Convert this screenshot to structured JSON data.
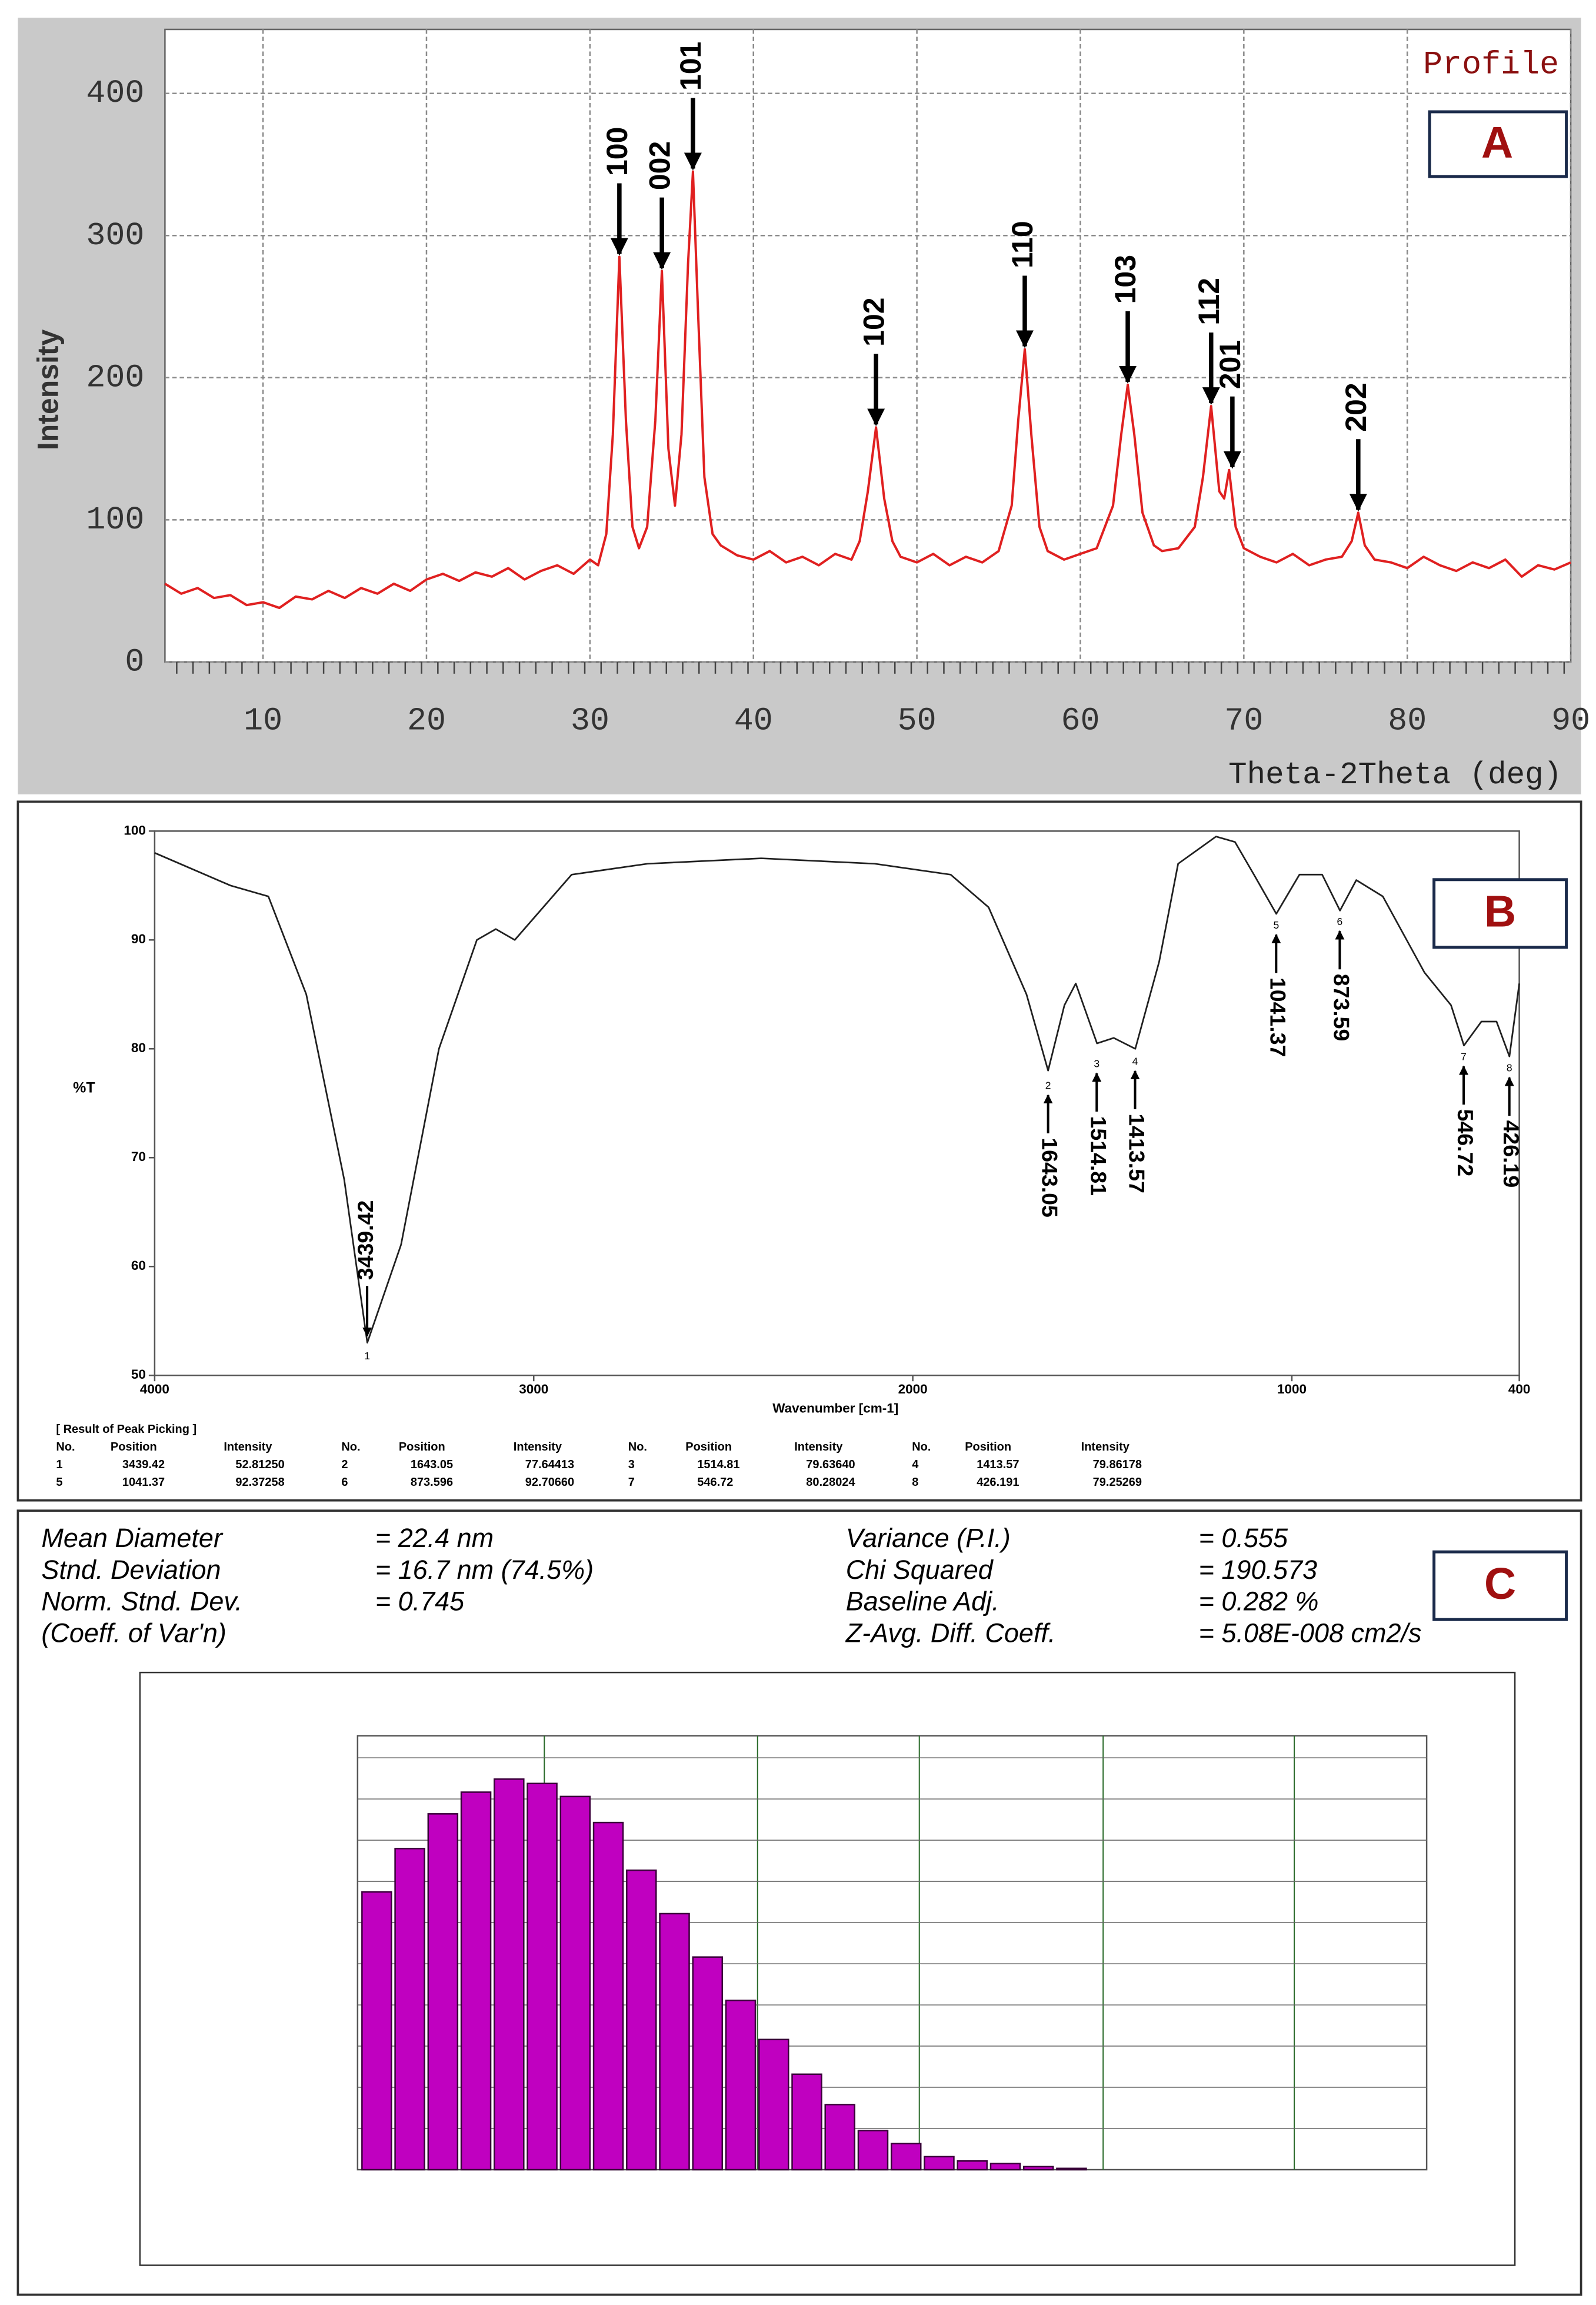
{
  "chart_data": [
    {
      "type": "line",
      "panel_label": "A",
      "corner_text": "Profile",
      "xlabel": "Theta-2Theta (deg)",
      "ylabel": "Intensity",
      "color": "#e02020",
      "grid": true,
      "xlim": [
        4,
        90
      ],
      "xticks": [
        10,
        20,
        30,
        40,
        50,
        60,
        70,
        80,
        90
      ],
      "ylim": [
        0,
        445
      ],
      "yticks": [
        0,
        100,
        200,
        300,
        400
      ],
      "x": [
        4,
        5,
        6,
        7,
        8,
        9,
        10,
        11,
        12,
        13,
        14,
        15,
        16,
        17,
        18,
        19,
        20,
        21,
        22,
        23,
        24,
        25,
        26,
        27,
        28,
        29,
        30,
        30.5,
        31,
        31.4,
        31.8,
        32.2,
        32.6,
        33,
        33.5,
        34,
        34.4,
        34.8,
        35.2,
        35.6,
        36,
        36.3,
        36.6,
        37,
        37.5,
        38,
        39,
        40,
        41,
        42,
        43,
        44,
        45,
        46,
        46.5,
        47,
        47.5,
        48,
        48.5,
        49,
        50,
        51,
        52,
        53,
        54,
        55,
        55.8,
        56.2,
        56.6,
        57,
        57.5,
        58,
        59,
        60,
        61,
        62,
        62.5,
        62.9,
        63.3,
        63.8,
        64.5,
        65,
        66,
        67,
        67.5,
        68,
        68.5,
        68.8,
        69.1,
        69.5,
        70,
        71,
        72,
        73,
        74,
        75,
        76,
        76.6,
        77,
        77.4,
        78,
        79,
        80,
        81,
        82,
        83,
        84,
        85,
        86,
        87,
        88,
        89,
        90
      ],
      "values": [
        55,
        48,
        52,
        45,
        47,
        40,
        42,
        38,
        46,
        44,
        50,
        45,
        52,
        48,
        55,
        50,
        58,
        62,
        57,
        63,
        60,
        66,
        58,
        64,
        68,
        62,
        72,
        68,
        90,
        160,
        285,
        170,
        95,
        80,
        95,
        170,
        275,
        150,
        110,
        160,
        280,
        345,
        250,
        130,
        90,
        82,
        75,
        72,
        78,
        70,
        74,
        68,
        76,
        72,
        85,
        120,
        165,
        115,
        85,
        74,
        70,
        76,
        68,
        74,
        70,
        78,
        110,
        170,
        220,
        160,
        95,
        78,
        72,
        76,
        80,
        110,
        160,
        195,
        160,
        105,
        82,
        78,
        80,
        95,
        130,
        180,
        120,
        115,
        135,
        95,
        80,
        74,
        70,
        76,
        68,
        72,
        74,
        85,
        105,
        82,
        72,
        70,
        66,
        74,
        68,
        64,
        70,
        66,
        72,
        60,
        68,
        65,
        70
      ],
      "annotations": [
        {
          "label": "100",
          "x": 31.8,
          "y": 285
        },
        {
          "label": "002",
          "x": 34.4,
          "y": 275
        },
        {
          "label": "101",
          "x": 36.3,
          "y": 345
        },
        {
          "label": "102",
          "x": 47.5,
          "y": 165
        },
        {
          "label": "110",
          "x": 56.6,
          "y": 220
        },
        {
          "label": "103",
          "x": 62.9,
          "y": 195
        },
        {
          "label": "112",
          "x": 68,
          "y": 180
        },
        {
          "label": "201",
          "x": 69.3,
          "y": 135
        },
        {
          "label": "202",
          "x": 77,
          "y": 105
        }
      ]
    },
    {
      "type": "line",
      "panel_label": "B",
      "xlabel": "Wavenumber [cm-1]",
      "ylabel": "%T",
      "color": "#202020",
      "grid": false,
      "xlim": [
        4000,
        400
      ],
      "xticks": [
        4000,
        3000,
        2000,
        1000,
        400
      ],
      "ylim": [
        50,
        100
      ],
      "yticks": [
        50,
        60,
        70,
        80,
        90,
        100
      ],
      "x": [
        4000,
        3800,
        3700,
        3600,
        3500,
        3439,
        3350,
        3250,
        3150,
        3100,
        3050,
        3000,
        2900,
        2700,
        2400,
        2100,
        1900,
        1800,
        1700,
        1643,
        1600,
        1570,
        1514,
        1470,
        1413,
        1350,
        1300,
        1200,
        1150,
        1100,
        1041,
        980,
        920,
        873,
        830,
        760,
        650,
        580,
        546,
        500,
        460,
        426,
        400
      ],
      "values": [
        98,
        95,
        94,
        85,
        68,
        53,
        62,
        80,
        90,
        91,
        90,
        92,
        96,
        97,
        97.5,
        97,
        96,
        93,
        85,
        78,
        84,
        86,
        80.5,
        81,
        80,
        88,
        97,
        99.5,
        99,
        96,
        92.4,
        96,
        96,
        92.7,
        95.5,
        94,
        87,
        84,
        80.3,
        82.5,
        82.5,
        79.3,
        86
      ],
      "annotations": [
        {
          "label": "3439.42",
          "number": 1,
          "x": 3439.42,
          "y": 52.8125
        },
        {
          "label": "1643.05",
          "number": 2,
          "x": 1643.05,
          "y": 77.64413
        },
        {
          "label": "1514.81",
          "number": 3,
          "x": 1514.81,
          "y": 79.6364
        },
        {
          "label": "1413.57",
          "number": 4,
          "x": 1413.57,
          "y": 79.86178
        },
        {
          "label": "1041.37",
          "number": 5,
          "x": 1041.37,
          "y": 92.37258
        },
        {
          "label": "873.59",
          "number": 6,
          "x": 873.596,
          "y": 92.7066
        },
        {
          "label": "546.72",
          "number": 7,
          "x": 546.72,
          "y": 80.28024
        },
        {
          "label": "426.19",
          "number": 8,
          "x": 426.191,
          "y": 79.25269
        }
      ],
      "peak_table": {
        "title": "[ Result of Peak Picking ]",
        "header": [
          "No.",
          "Position",
          "Intensity",
          "No.",
          "Position",
          "Intensity",
          "No.",
          "Position",
          "Intensity",
          "No.",
          "Position",
          "Intensity"
        ],
        "rows": [
          [
            "1",
            "3439.42",
            "52.81250",
            "2",
            "1643.05",
            "77.64413",
            "3",
            "1514.81",
            "79.63640",
            "4",
            "1413.57",
            "79.86178"
          ],
          [
            "5",
            "1041.37",
            "92.37258",
            "6",
            "873.596",
            "92.70660",
            "7",
            "546.72",
            "80.28024",
            "8",
            "426.191",
            "79.25269"
          ]
        ]
      }
    },
    {
      "type": "bar",
      "panel_label": "C",
      "color": "#c000c0",
      "ylim": [
        0,
        100
      ],
      "values": [
        64,
        74,
        82,
        87,
        90,
        89,
        86,
        80,
        69,
        59,
        49,
        39,
        30,
        22,
        15,
        9,
        6,
        3,
        2,
        1.4,
        0.7,
        0.3
      ],
      "stats_left": [
        {
          "label": "Mean Diameter",
          "value": "= 22.4  nm"
        },
        {
          "label": "Stnd. Deviation",
          "value": "= 16.7  nm (74.5%)"
        },
        {
          "label": "Norm. Stnd. Dev.",
          "value": "= 0.745"
        },
        {
          "label": "(Coeff. of Var'n)"
        }
      ],
      "stats_right": [
        {
          "label": "Variance (P.I.)",
          "value": "= 0.555"
        },
        {
          "label": "Chi Squared",
          "value": "= 190.573"
        },
        {
          "label": "Baseline Adj.",
          "value": "= 0.282 %"
        },
        {
          "label": "Z-Avg. Diff. Coeff.",
          "value": "= 5.08E-008 cm2/s"
        }
      ]
    }
  ]
}
